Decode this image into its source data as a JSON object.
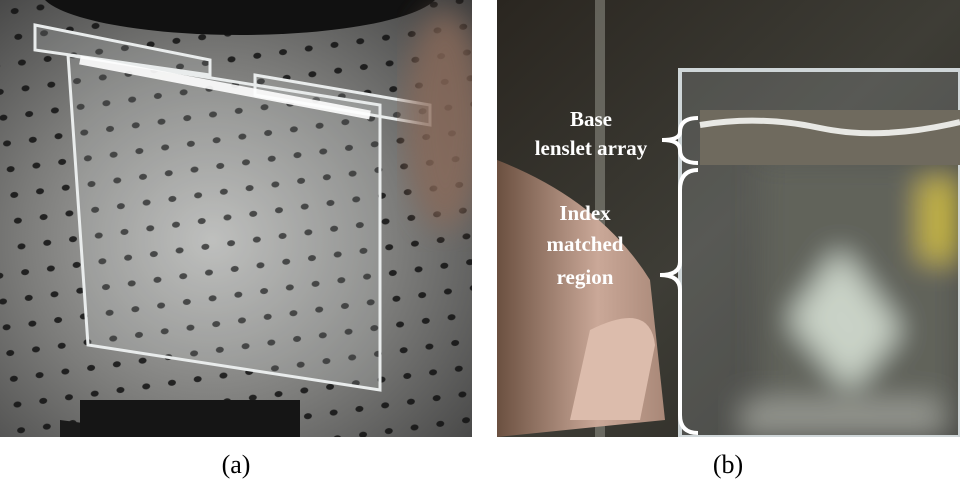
{
  "panels": [
    {
      "caption": "(a)"
    },
    {
      "caption": "(b)",
      "labels": [
        {
          "lines": [
            "Base",
            "lenslet array"
          ]
        },
        {
          "lines": [
            "Index",
            "matched",
            "region"
          ]
        }
      ]
    }
  ]
}
